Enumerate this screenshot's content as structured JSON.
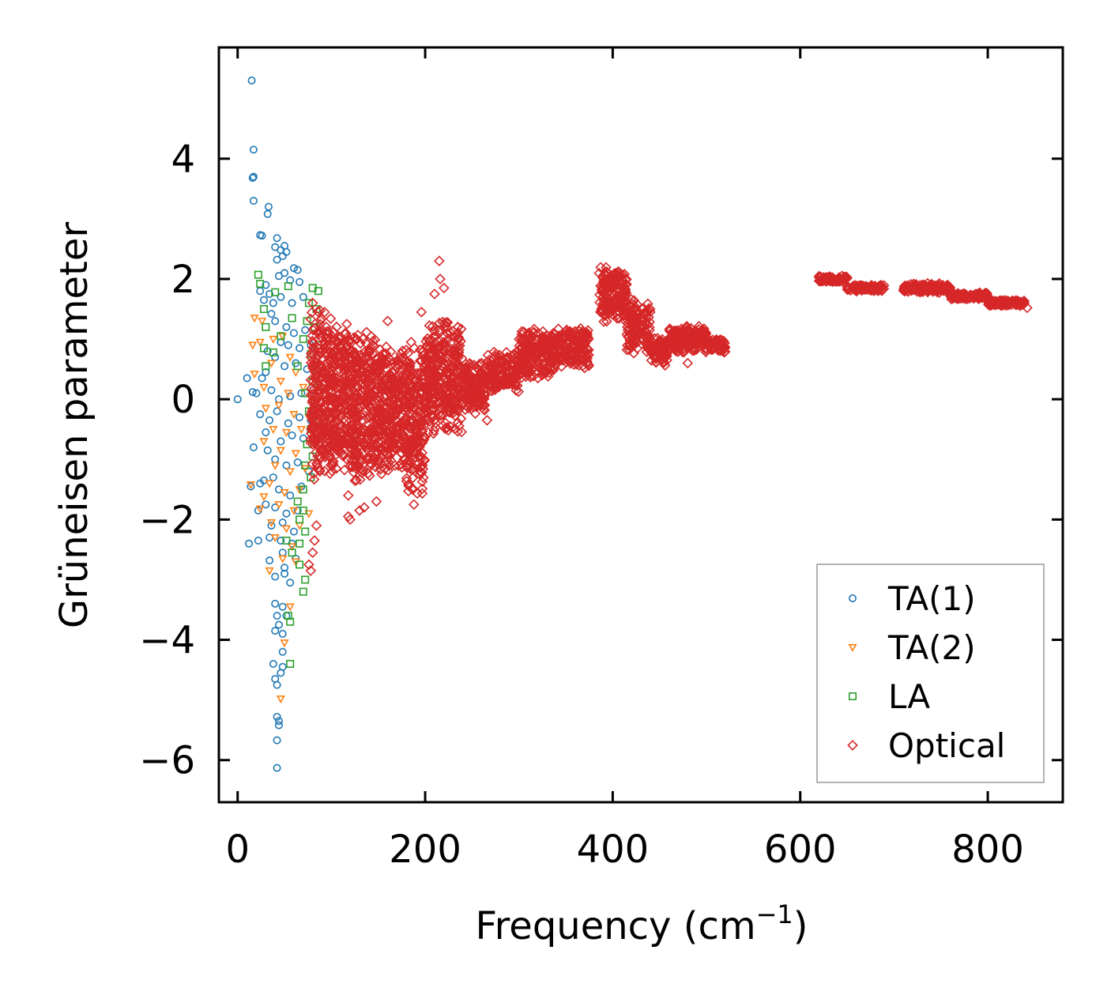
{
  "chart_data": {
    "type": "scatter",
    "title": "",
    "xlabel_main": "Frequency (cm",
    "xlabel_sup": "−1",
    "xlabel_close": ")",
    "ylabel": "Grüneisen parameter",
    "xlim": [
      -20,
      880
    ],
    "ylim": [
      -6.7,
      5.85
    ],
    "x_ticks": [
      {
        "value": 0,
        "label": "0"
      },
      {
        "value": 200,
        "label": "200"
      },
      {
        "value": 400,
        "label": "400"
      },
      {
        "value": 600,
        "label": "600"
      },
      {
        "value": 800,
        "label": "800"
      }
    ],
    "y_ticks": [
      {
        "value": -6,
        "label": "−6"
      },
      {
        "value": -4,
        "label": "−4"
      },
      {
        "value": -2,
        "label": "−2"
      },
      {
        "value": 0,
        "label": "0"
      },
      {
        "value": 2,
        "label": "2"
      },
      {
        "value": 4,
        "label": "4"
      }
    ],
    "legend_position": "bottom-right",
    "series": [
      {
        "name": "TA(1)",
        "marker": "circle",
        "color": "#1f77b4",
        "points": [
          [
            15,
            5.3
          ],
          [
            17,
            4.15
          ],
          [
            16,
            3.68
          ],
          [
            17,
            3.7
          ],
          [
            17,
            3.3
          ],
          [
            33,
            3.2
          ],
          [
            32,
            3.08
          ],
          [
            24,
            2.73
          ],
          [
            26,
            2.72
          ],
          [
            42,
            2.68
          ],
          [
            50,
            2.55
          ],
          [
            40,
            2.53
          ],
          [
            46,
            2.48
          ],
          [
            52,
            2.45
          ],
          [
            42,
            2.32
          ],
          [
            48,
            2.38
          ],
          [
            60,
            2.18
          ],
          [
            64,
            2.15
          ],
          [
            44,
            2.05
          ],
          [
            50,
            2.1
          ],
          [
            56,
            1.98
          ],
          [
            66,
            1.95
          ],
          [
            30,
            1.9
          ],
          [
            24,
            1.8
          ],
          [
            34,
            1.75
          ],
          [
            28,
            1.65
          ],
          [
            38,
            1.6
          ],
          [
            46,
            1.7
          ],
          [
            58,
            1.6
          ],
          [
            70,
            1.7
          ],
          [
            36,
            1.42
          ],
          [
            40,
            1.3
          ],
          [
            52,
            1.2
          ],
          [
            60,
            1.1
          ],
          [
            72,
            1.15
          ],
          [
            46,
            0.95
          ],
          [
            54,
            0.9
          ],
          [
            66,
            0.85
          ],
          [
            78,
            0.9
          ],
          [
            32,
            0.8
          ],
          [
            40,
            0.7
          ],
          [
            50,
            0.55
          ],
          [
            62,
            0.6
          ],
          [
            74,
            0.5
          ],
          [
            84,
            0.4
          ],
          [
            30,
            0.45
          ],
          [
            26,
            0.35
          ],
          [
            10,
            0.35
          ],
          [
            16,
            0.12
          ],
          [
            20,
            0.1
          ],
          [
            36,
            0.15
          ],
          [
            44,
            0.0
          ],
          [
            56,
            0.05
          ],
          [
            68,
            0.1
          ],
          [
            80,
            0.15
          ],
          [
            0,
            0.0
          ],
          [
            24,
            -0.25
          ],
          [
            34,
            -0.35
          ],
          [
            42,
            -0.2
          ],
          [
            54,
            -0.4
          ],
          [
            66,
            -0.3
          ],
          [
            78,
            -0.35
          ],
          [
            30,
            -0.55
          ],
          [
            46,
            -0.7
          ],
          [
            58,
            -0.6
          ],
          [
            70,
            -0.65
          ],
          [
            17,
            -0.8
          ],
          [
            32,
            -0.85
          ],
          [
            40,
            -1.0
          ],
          [
            52,
            -1.1
          ],
          [
            64,
            -1.05
          ],
          [
            76,
            -1.2
          ],
          [
            28,
            -1.35
          ],
          [
            38,
            -1.3
          ],
          [
            14,
            -1.45
          ],
          [
            24,
            -1.4
          ],
          [
            44,
            -1.5
          ],
          [
            56,
            -1.6
          ],
          [
            68,
            -1.45
          ],
          [
            30,
            -1.75
          ],
          [
            40,
            -1.8
          ],
          [
            52,
            -1.9
          ],
          [
            64,
            -1.85
          ],
          [
            22,
            -1.85
          ],
          [
            36,
            -2.1
          ],
          [
            48,
            -2.05
          ],
          [
            60,
            -2.2
          ],
          [
            34,
            -2.3
          ],
          [
            46,
            -2.35
          ],
          [
            58,
            -2.4
          ],
          [
            12,
            -2.4
          ],
          [
            22,
            -2.35
          ],
          [
            48,
            -2.55
          ],
          [
            62,
            -2.65
          ],
          [
            34,
            -2.68
          ],
          [
            50,
            -2.8
          ],
          [
            40,
            -2.95
          ],
          [
            50,
            -2.9
          ],
          [
            56,
            -3.05
          ],
          [
            40,
            -3.4
          ],
          [
            48,
            -3.45
          ],
          [
            52,
            -3.6
          ],
          [
            42,
            -3.6
          ],
          [
            44,
            -3.75
          ],
          [
            40,
            -3.85
          ],
          [
            48,
            -3.9
          ],
          [
            48,
            -4.2
          ],
          [
            38,
            -4.4
          ],
          [
            48,
            -4.45
          ],
          [
            46,
            -4.55
          ],
          [
            40,
            -4.65
          ],
          [
            42,
            -4.75
          ],
          [
            42,
            -5.28
          ],
          [
            44,
            -5.35
          ],
          [
            44,
            -5.42
          ],
          [
            42,
            -5.67
          ],
          [
            42,
            -6.13
          ]
        ]
      },
      {
        "name": "TA(2)",
        "marker": "triangle-down",
        "color": "#ff7f0e",
        "points": [
          [
            18,
            1.35
          ],
          [
            26,
            1.3
          ],
          [
            38,
            1.0
          ],
          [
            48,
            1.05
          ],
          [
            16,
            0.9
          ],
          [
            24,
            0.95
          ],
          [
            56,
            0.7
          ],
          [
            18,
            0.42
          ],
          [
            36,
            0.6
          ],
          [
            46,
            0.3
          ],
          [
            62,
            0.45
          ],
          [
            28,
            0.2
          ],
          [
            54,
            0.1
          ],
          [
            70,
            0.2
          ],
          [
            30,
            -0.15
          ],
          [
            44,
            -0.1
          ],
          [
            60,
            -0.25
          ],
          [
            76,
            -0.3
          ],
          [
            38,
            -0.5
          ],
          [
            52,
            -0.55
          ],
          [
            68,
            -0.5
          ],
          [
            28,
            -0.7
          ],
          [
            46,
            -0.85
          ],
          [
            62,
            -0.9
          ],
          [
            40,
            -1.1
          ],
          [
            56,
            -1.2
          ],
          [
            72,
            -1.15
          ],
          [
            14,
            -1.42
          ],
          [
            34,
            -1.4
          ],
          [
            50,
            -1.55
          ],
          [
            66,
            -1.5
          ],
          [
            28,
            -1.62
          ],
          [
            44,
            -1.75
          ],
          [
            60,
            -1.85
          ],
          [
            76,
            -1.9
          ],
          [
            24,
            -1.82
          ],
          [
            36,
            -2.05
          ],
          [
            52,
            -2.15
          ],
          [
            66,
            -2.1
          ],
          [
            40,
            -2.3
          ],
          [
            58,
            -2.45
          ],
          [
            48,
            -2.65
          ],
          [
            34,
            -2.85
          ],
          [
            62,
            -2.7
          ],
          [
            56,
            -3.45
          ],
          [
            50,
            -4.05
          ],
          [
            46,
            -4.98
          ]
        ]
      },
      {
        "name": "LA",
        "marker": "square",
        "color": "#2ca02c",
        "points": [
          [
            22,
            2.07
          ],
          [
            24,
            1.92
          ],
          [
            54,
            1.88
          ],
          [
            40,
            1.78
          ],
          [
            80,
            1.85
          ],
          [
            86,
            1.8
          ],
          [
            28,
            1.5
          ],
          [
            76,
            1.6
          ],
          [
            84,
            1.5
          ],
          [
            58,
            1.35
          ],
          [
            74,
            1.3
          ],
          [
            30,
            1.2
          ],
          [
            82,
            1.2
          ],
          [
            46,
            1.05
          ],
          [
            70,
            1.0
          ],
          [
            86,
            0.9
          ],
          [
            28,
            0.85
          ],
          [
            38,
            0.78
          ],
          [
            78,
            0.75
          ],
          [
            30,
            0.55
          ],
          [
            64,
            0.55
          ],
          [
            84,
            0.5
          ],
          [
            80,
            0.3
          ],
          [
            86,
            0.2
          ],
          [
            72,
            0.1
          ],
          [
            82,
            -0.05
          ],
          [
            76,
            -0.2
          ],
          [
            86,
            -0.35
          ],
          [
            78,
            -0.5
          ],
          [
            84,
            -0.6
          ],
          [
            74,
            -0.75
          ],
          [
            80,
            -0.95
          ],
          [
            72,
            -1.1
          ],
          [
            78,
            -1.3
          ],
          [
            70,
            -1.5
          ],
          [
            64,
            -1.7
          ],
          [
            70,
            -1.85
          ],
          [
            66,
            -2.0
          ],
          [
            72,
            -2.2
          ],
          [
            52,
            -2.35
          ],
          [
            66,
            -2.4
          ],
          [
            58,
            -2.55
          ],
          [
            66,
            -2.75
          ],
          [
            72,
            -3.0
          ],
          [
            70,
            -3.2
          ],
          [
            54,
            -3.6
          ],
          [
            56,
            -3.7
          ],
          [
            56,
            -4.4
          ]
        ]
      },
      {
        "name": "Optical",
        "marker": "diamond",
        "color": "#d62728",
        "bands": [
          {
            "x": [
              78,
              100
            ],
            "mid": 0.1,
            "amp": 1.55
          },
          {
            "x": [
              100,
              120
            ],
            "mid": 0.05,
            "amp": 1.35
          },
          {
            "x": [
              120,
              160
            ],
            "mid": -0.15,
            "amp": 1.35
          },
          {
            "x": [
              160,
              180
            ],
            "mid": -0.15,
            "amp": 1.1
          },
          {
            "x": [
              180,
              200
            ],
            "mid": -0.3,
            "amp": 1.35
          },
          {
            "x": [
              200,
              240
            ],
            "mid": 0.35,
            "amp": 1.0
          },
          {
            "x": [
              240,
              265
            ],
            "mid": 0.2,
            "amp": 0.5
          },
          {
            "x": [
              265,
              300
            ],
            "mid": 0.45,
            "amp": 0.35
          },
          {
            "x": [
              300,
              340
            ],
            "mid": 0.75,
            "amp": 0.45
          },
          {
            "x": [
              340,
              375
            ],
            "mid": 0.85,
            "amp": 0.35
          },
          {
            "x": [
              385,
              415
            ],
            "mid": 1.75,
            "amp": 0.5
          },
          {
            "x": [
              415,
              440
            ],
            "mid": 1.2,
            "amp": 0.5
          },
          {
            "x": [
              440,
              460
            ],
            "mid": 0.8,
            "amp": 0.25
          },
          {
            "x": [
              460,
              500
            ],
            "mid": 1.0,
            "amp": 0.25
          },
          {
            "x": [
              500,
              520
            ],
            "mid": 0.9,
            "amp": 0.12
          },
          {
            "x": [
              620,
              650
            ],
            "mid": 2.0,
            "amp": 0.05
          },
          {
            "x": [
              650,
              690
            ],
            "mid": 1.85,
            "amp": 0.06
          },
          {
            "x": [
              710,
              760
            ],
            "mid": 1.85,
            "amp": 0.08
          },
          {
            "x": [
              760,
              800
            ],
            "mid": 1.72,
            "amp": 0.06
          },
          {
            "x": [
              800,
              840
            ],
            "mid": 1.6,
            "amp": 0.05
          }
        ],
        "outliers": [
          [
            215,
            2.3
          ],
          [
            216,
            2.0
          ],
          [
            220,
            1.85
          ],
          [
            210,
            1.75
          ],
          [
            196,
            1.45
          ],
          [
            160,
            1.3
          ],
          [
            235,
            1.2
          ],
          [
            185,
            0.95
          ],
          [
            88,
            1.25
          ],
          [
            80,
            1.6
          ],
          [
            118,
            -1.6
          ],
          [
            120,
            -2.0
          ],
          [
            118,
            -1.95
          ],
          [
            130,
            -1.85
          ],
          [
            135,
            -1.8
          ],
          [
            148,
            -1.7
          ],
          [
            188,
            -1.75
          ],
          [
            266,
            -0.35
          ],
          [
            84,
            -2.1
          ],
          [
            82,
            -2.35
          ],
          [
            80,
            -2.55
          ],
          [
            76,
            -2.75
          ],
          [
            78,
            -2.85
          ],
          [
            96,
            -0.85
          ],
          [
            104,
            -0.6
          ],
          [
            440,
            1.45
          ],
          [
            480,
            0.6
          ],
          [
            842,
            1.52
          ]
        ]
      }
    ]
  }
}
